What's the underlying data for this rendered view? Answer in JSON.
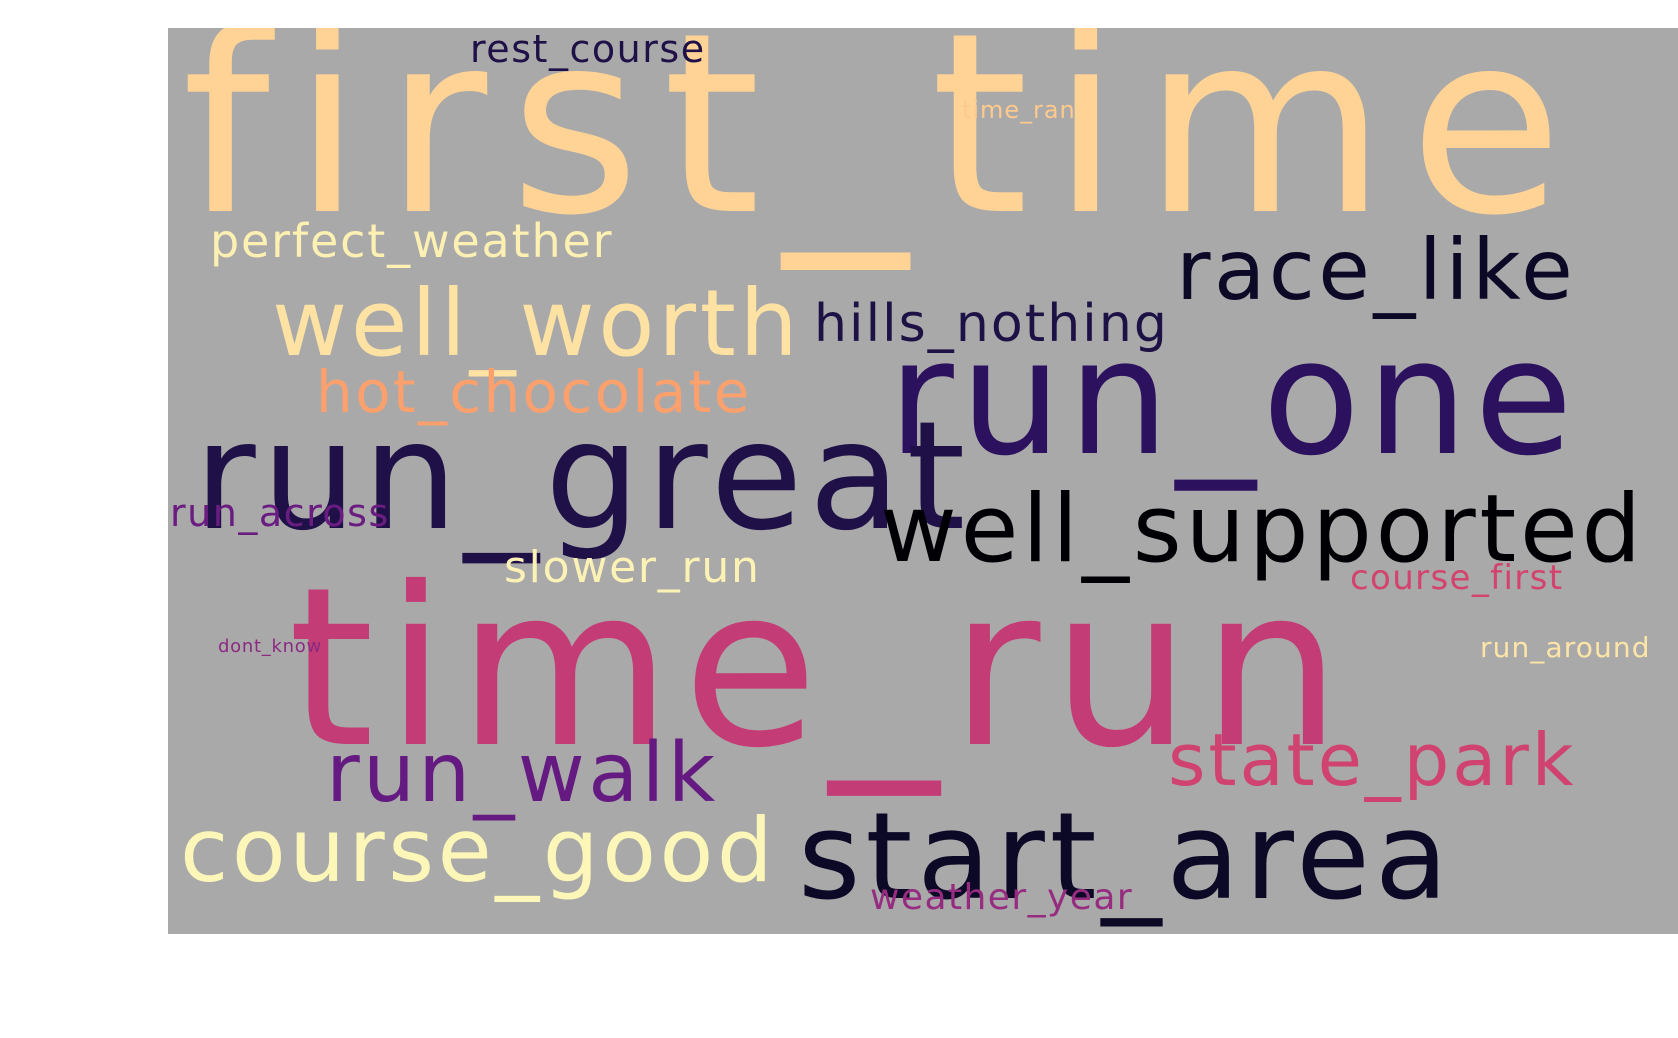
{
  "words": [
    {
      "text": "first_time",
      "color": "#fed395"
    },
    {
      "text": "rest_course",
      "color": "#1f1147"
    },
    {
      "text": "time_ran",
      "color": "#fec98d"
    },
    {
      "text": "perfect_weather",
      "color": "#fcf0b2"
    },
    {
      "text": "race_like",
      "color": "#0c0926"
    },
    {
      "text": "well_worth",
      "color": "#fde2a3"
    },
    {
      "text": "hills_nothing",
      "color": "#1d1145"
    },
    {
      "text": "hot_chocolate",
      "color": "#fca06e"
    },
    {
      "text": "run_one",
      "color": "#2c115f"
    },
    {
      "text": "run_great",
      "color": "#1f1147"
    },
    {
      "text": "run_across",
      "color": "#6a1c81"
    },
    {
      "text": "well_supported",
      "color": "#000004"
    },
    {
      "text": "slower_run",
      "color": "#fcf2b6"
    },
    {
      "text": "course_first",
      "color": "#d3436e"
    },
    {
      "text": "time_run",
      "color": "#c43c75"
    },
    {
      "text": "dont_know",
      "color": "#8c2981"
    },
    {
      "text": "run_around",
      "color": "#fde5a7"
    },
    {
      "text": "state_park",
      "color": "#d0426f"
    },
    {
      "text": "run_walk",
      "color": "#641a80"
    },
    {
      "text": "course_good",
      "color": "#fcf7b9"
    },
    {
      "text": "start_area",
      "color": "#0c0926"
    },
    {
      "text": "weather_year",
      "color": "#962c80"
    }
  ]
}
